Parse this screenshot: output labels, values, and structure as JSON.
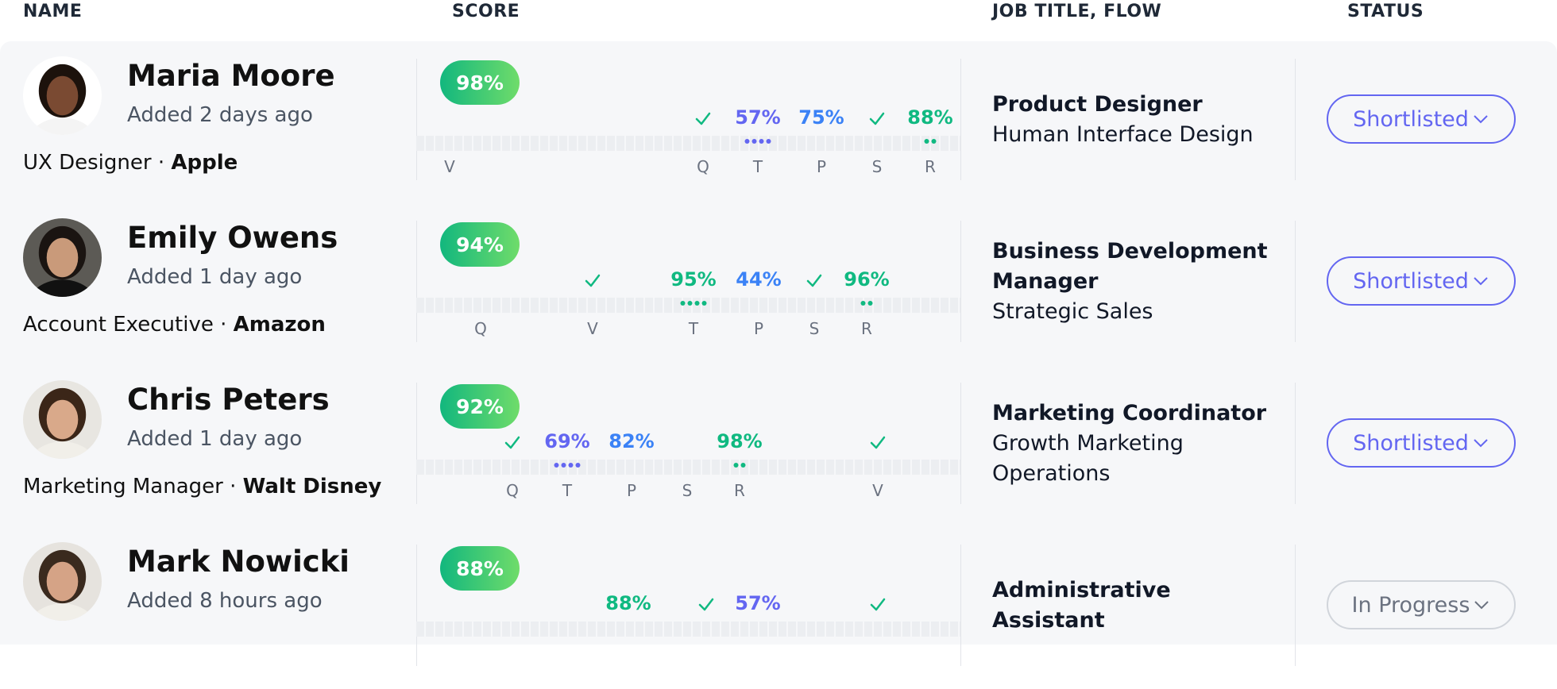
{
  "header": {
    "name": "NAME",
    "score": "SCORE",
    "job": "JOB TITLE, FLOW",
    "status": "STATUS"
  },
  "separator": "·",
  "rows": [
    {
      "name": "Maria Moore",
      "added": "Added 2 days ago",
      "role": "UX Designer",
      "company": "Apple",
      "score": "98%",
      "markers": [
        {
          "letter": "V"
        },
        {
          "letter": "Q",
          "check": true
        },
        {
          "letter": "T",
          "label": "57%",
          "color": "#6366f1",
          "dots": 4
        },
        {
          "letter": "P",
          "label": "75%",
          "color": "#3b82f6"
        },
        {
          "letter": "S",
          "check": true
        },
        {
          "letter": "R",
          "label": "88%",
          "color": "#10b981",
          "dots": 2
        }
      ],
      "job_title": "Product Designer",
      "flow": "Human Interface Design",
      "status": "Shortlisted"
    },
    {
      "name": "Emily Owens",
      "added": "Added 1 day ago",
      "role": "Account Executive",
      "company": "Amazon",
      "score": "94%",
      "markers": [
        {
          "letter": "Q"
        },
        {
          "letter": "V",
          "check": true
        },
        {
          "letter": "T",
          "label": "95%",
          "color": "#10b981",
          "dots": 4
        },
        {
          "letter": "P",
          "label": "44%",
          "color": "#3b82f6"
        },
        {
          "letter": "S",
          "check": true
        },
        {
          "letter": "R",
          "label": "96%",
          "color": "#10b981",
          "dots": 2
        }
      ],
      "job_title": "Business Development Manager",
      "flow": "Strategic Sales",
      "status": "Shortlisted"
    },
    {
      "name": "Chris Peters",
      "added": "Added 1 day ago",
      "role": "Marketing Manager",
      "company": "Walt Disney",
      "score": "92%",
      "markers": [
        {
          "letter": "Q",
          "check": true
        },
        {
          "letter": "T",
          "label": "69%",
          "color": "#6366f1",
          "dots": 4
        },
        {
          "letter": "P",
          "label": "82%",
          "color": "#3b82f6"
        },
        {
          "letter": "S"
        },
        {
          "letter": "R",
          "label": "98%",
          "color": "#10b981",
          "dots": 2
        },
        {
          "letter": "V",
          "check": true
        }
      ],
      "job_title": "Marketing Coordinator",
      "flow": "Growth Marketing Operations",
      "status": "Shortlisted"
    },
    {
      "name": "Mark Nowicki",
      "added": "Added 8 hours ago",
      "score": "88%",
      "markers": [
        {
          "label": "88%",
          "color": "#10b981"
        },
        {
          "check": true
        },
        {
          "label": "57%",
          "color": "#6366f1"
        },
        {
          "check": true
        }
      ],
      "job_title": "Administrative Assistant",
      "status": "In Progress"
    }
  ]
}
